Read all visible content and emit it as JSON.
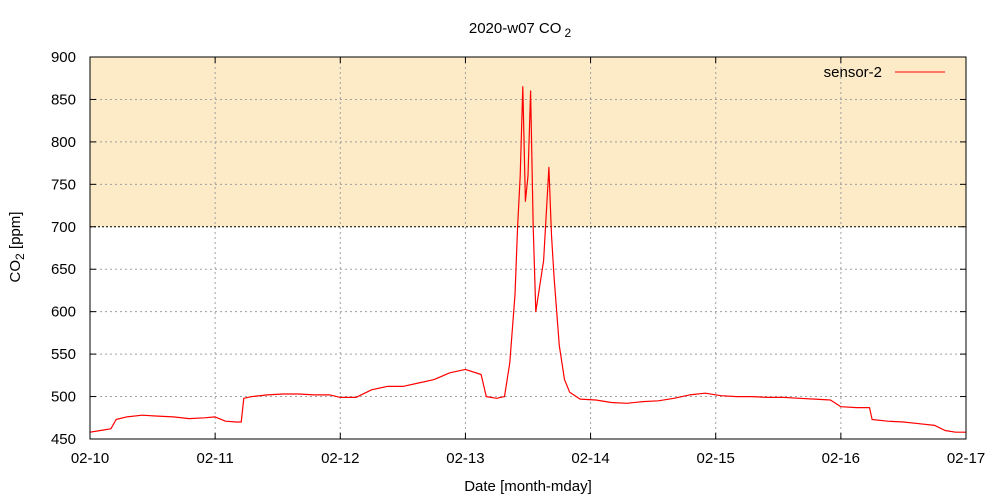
{
  "chart_data": {
    "type": "line",
    "title": {
      "main": "2020-w07 CO",
      "sub": "2"
    },
    "xlabel": "Date [month-mday]",
    "ylabel": {
      "main": "CO",
      "sub": "2",
      "rest": " [ppm]"
    },
    "xlim": [
      "02-10",
      "02-17"
    ],
    "ylim": [
      450,
      900
    ],
    "x_ticks": [
      "02-10",
      "02-11",
      "02-12",
      "02-13",
      "02-14",
      "02-15",
      "02-16",
      "02-17"
    ],
    "y_ticks": [
      450,
      500,
      550,
      600,
      650,
      700,
      750,
      800,
      850,
      900
    ],
    "grid": true,
    "threshold_band": {
      "from": 700,
      "to": 900,
      "color": "#fdebc8"
    },
    "threshold_line": 700,
    "legend": {
      "position": "top-right"
    },
    "series": [
      {
        "name": "sensor-2",
        "color": "#ff0000",
        "points": [
          [
            "02-10 00:00",
            458
          ],
          [
            "02-10 02:00",
            460
          ],
          [
            "02-10 04:00",
            462
          ],
          [
            "02-10 05:00",
            473
          ],
          [
            "02-10 07:00",
            476
          ],
          [
            "02-10 10:00",
            478
          ],
          [
            "02-10 13:00",
            477
          ],
          [
            "02-10 16:00",
            476
          ],
          [
            "02-10 19:00",
            474
          ],
          [
            "02-10 22:00",
            475
          ],
          [
            "02-11 00:00",
            476
          ],
          [
            "02-11 02:00",
            471
          ],
          [
            "02-11 04:00",
            470
          ],
          [
            "02-11 05:00",
            470
          ],
          [
            "02-11 05:30",
            498
          ],
          [
            "02-11 07:00",
            500
          ],
          [
            "02-11 10:00",
            502
          ],
          [
            "02-11 13:00",
            503
          ],
          [
            "02-11 16:00",
            503
          ],
          [
            "02-11 19:00",
            502
          ],
          [
            "02-11 22:00",
            502
          ],
          [
            "02-12 00:00",
            499
          ],
          [
            "02-12 03:00",
            499
          ],
          [
            "02-12 06:00",
            508
          ],
          [
            "02-12 09:00",
            512
          ],
          [
            "02-12 12:00",
            512
          ],
          [
            "02-12 15:00",
            516
          ],
          [
            "02-12 18:00",
            520
          ],
          [
            "02-12 21:00",
            528
          ],
          [
            "02-13 00:00",
            532
          ],
          [
            "02-13 03:00",
            526
          ],
          [
            "02-13 04:00",
            500
          ],
          [
            "02-13 06:00",
            498
          ],
          [
            "02-13 07:30",
            500
          ],
          [
            "02-13 08:30",
            540
          ],
          [
            "02-13 09:30",
            620
          ],
          [
            "02-13 10:00",
            700
          ],
          [
            "02-13 10:30",
            760
          ],
          [
            "02-13 11:00",
            865
          ],
          [
            "02-13 11:30",
            730
          ],
          [
            "02-13 12:00",
            760
          ],
          [
            "02-13 12:30",
            860
          ],
          [
            "02-13 13:00",
            700
          ],
          [
            "02-13 13:30",
            600
          ],
          [
            "02-13 14:00",
            620
          ],
          [
            "02-13 15:00",
            660
          ],
          [
            "02-13 16:00",
            770
          ],
          [
            "02-13 16:30",
            690
          ],
          [
            "02-13 17:00",
            640
          ],
          [
            "02-13 17:30",
            600
          ],
          [
            "02-13 18:00",
            560
          ],
          [
            "02-13 19:00",
            520
          ],
          [
            "02-13 20:00",
            505
          ],
          [
            "02-13 22:00",
            497
          ],
          [
            "02-14 01:00",
            496
          ],
          [
            "02-14 04:00",
            493
          ],
          [
            "02-14 07:00",
            492
          ],
          [
            "02-14 10:00",
            494
          ],
          [
            "02-14 13:00",
            495
          ],
          [
            "02-14 16:00",
            498
          ],
          [
            "02-14 19:00",
            502
          ],
          [
            "02-14 22:00",
            504
          ],
          [
            "02-15 01:00",
            501
          ],
          [
            "02-15 04:00",
            500
          ],
          [
            "02-15 07:00",
            500
          ],
          [
            "02-15 10:00",
            499
          ],
          [
            "02-15 13:00",
            499
          ],
          [
            "02-15 16:00",
            498
          ],
          [
            "02-15 19:00",
            497
          ],
          [
            "02-15 22:00",
            496
          ],
          [
            "02-16 00:00",
            488
          ],
          [
            "02-16 03:00",
            487
          ],
          [
            "02-16 05:30",
            487
          ],
          [
            "02-16 06:00",
            473
          ],
          [
            "02-16 09:00",
            471
          ],
          [
            "02-16 12:00",
            470
          ],
          [
            "02-16 15:00",
            468
          ],
          [
            "02-16 18:00",
            466
          ],
          [
            "02-16 20:00",
            460
          ],
          [
            "02-16 22:00",
            458
          ],
          [
            "02-17 00:00",
            458
          ]
        ]
      }
    ]
  }
}
